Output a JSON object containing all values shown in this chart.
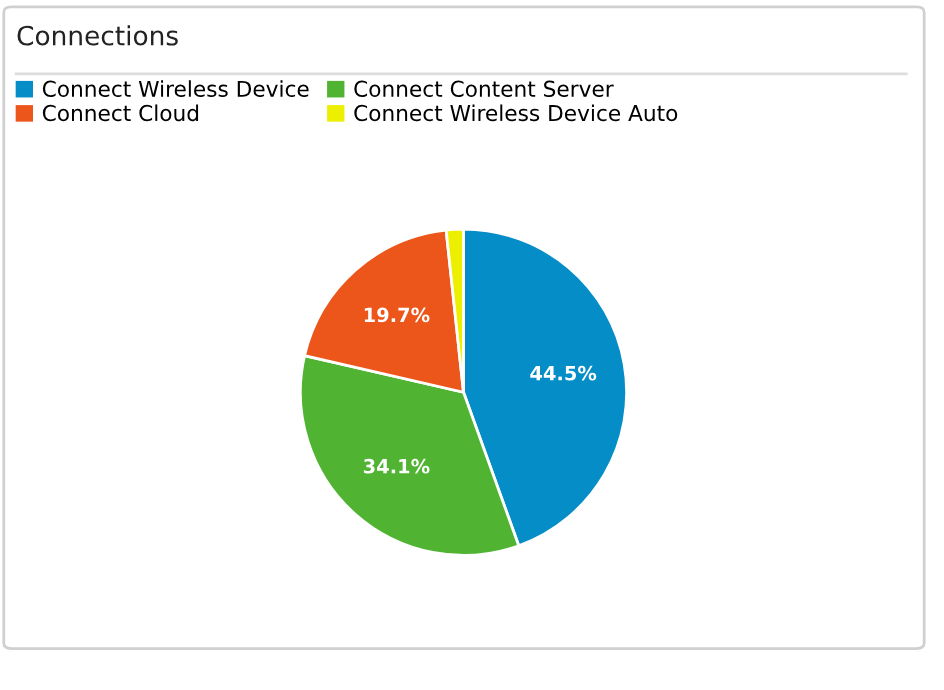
{
  "chart_data": {
    "type": "pie",
    "title": "Connections",
    "categories": [
      "Connect Wireless Device",
      "Connect Content Server",
      "Connect Cloud",
      "Connect Wireless Device Auto"
    ],
    "values": [
      44.5,
      34.1,
      19.7,
      1.7
    ],
    "colors": [
      "#058dc7",
      "#50b432",
      "#ed561b",
      "#edef00"
    ],
    "value_labels": [
      "44.5%",
      "34.1%",
      "19.7%",
      null
    ],
    "legend": "top"
  }
}
